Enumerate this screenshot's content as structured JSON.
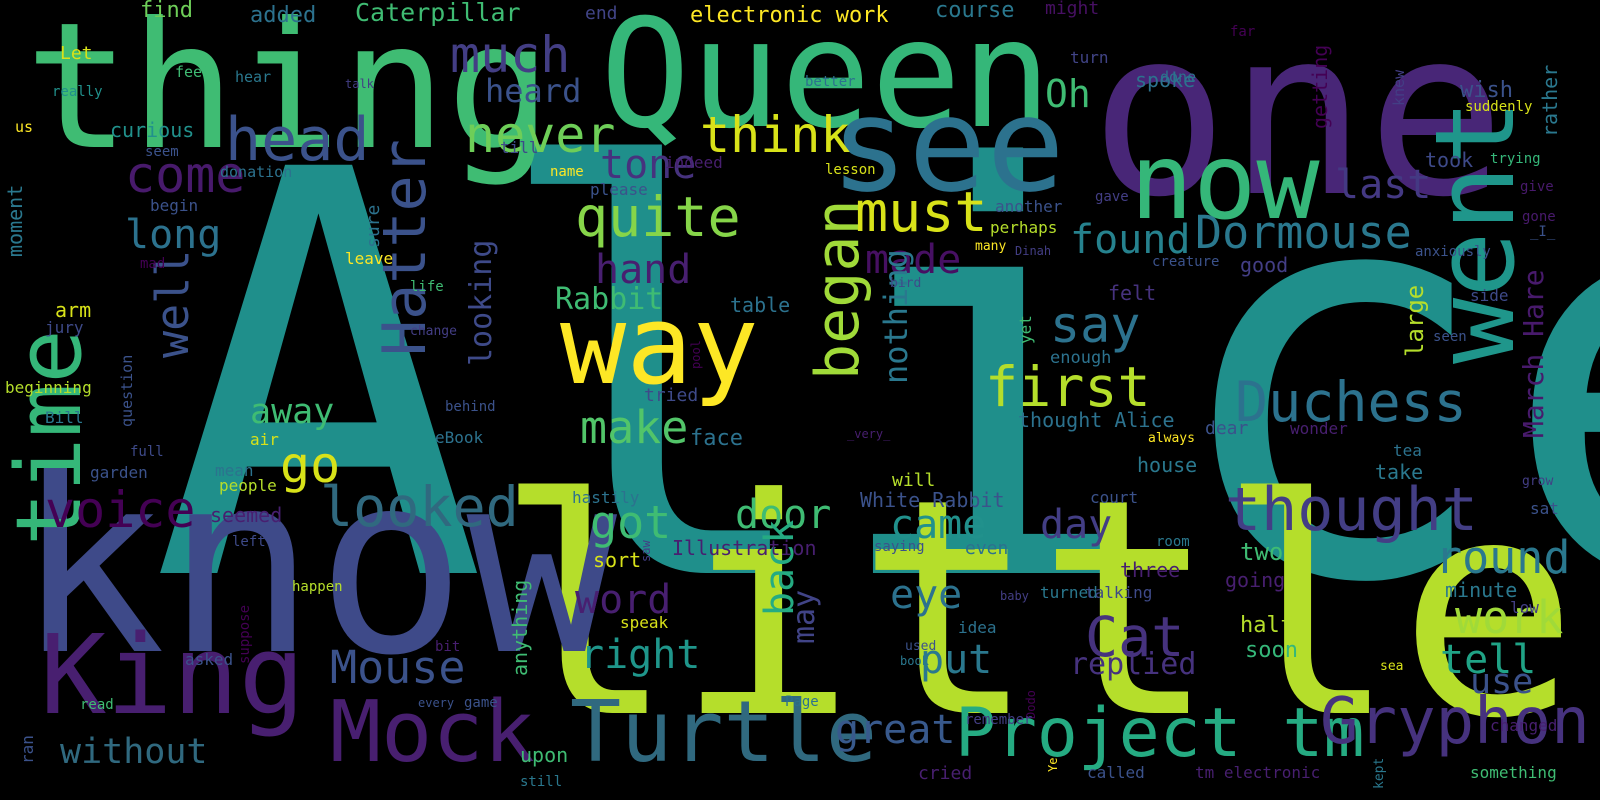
{
  "words": [
    {
      "text": "Alice",
      "color": "#1f8f8b"
    },
    {
      "text": "little",
      "color": "#b5de2b"
    },
    {
      "text": "one",
      "color": "#482677"
    },
    {
      "text": "know",
      "color": "#3e4a89"
    },
    {
      "text": "thing",
      "color": "#3fbc73"
    },
    {
      "text": "Queen",
      "color": "#35b779"
    },
    {
      "text": "time",
      "color": "#35b779"
    },
    {
      "text": "see",
      "color": "#2c728e"
    },
    {
      "text": "went",
      "color": "#1f968b"
    },
    {
      "text": "now",
      "color": "#35b779"
    },
    {
      "text": "way",
      "color": "#fde725"
    },
    {
      "text": "King",
      "color": "#481f70"
    },
    {
      "text": "Turtle",
      "color": "#30697f"
    },
    {
      "text": "Mock",
      "color": "#481f70"
    },
    {
      "text": "Project tm",
      "color": "#25ab82"
    },
    {
      "text": "Gryphon",
      "color": "#46327e"
    },
    {
      "text": "thought",
      "color": "#433e85"
    },
    {
      "text": "Hatter",
      "color": "#3b528b"
    },
    {
      "text": "began",
      "color": "#a0da39"
    },
    {
      "text": "head",
      "color": "#3b528b"
    },
    {
      "text": "quite",
      "color": "#86d549"
    },
    {
      "text": "must",
      "color": "#d8e219"
    },
    {
      "text": "first",
      "color": "#b5de2b"
    },
    {
      "text": "looked",
      "color": "#30697f"
    },
    {
      "text": "Duchess",
      "color": "#2c728e"
    },
    {
      "text": "Dormouse",
      "color": "#2a788e"
    },
    {
      "text": "think",
      "color": "#d8e219"
    },
    {
      "text": "much",
      "color": "#433e85"
    },
    {
      "text": "never",
      "color": "#6ece58"
    },
    {
      "text": "come",
      "color": "#481a6c"
    },
    {
      "text": "voice",
      "color": "#440154"
    },
    {
      "text": "say",
      "color": "#2c728e"
    },
    {
      "text": "go",
      "color": "#d8e219"
    },
    {
      "text": "got",
      "color": "#3fbc73"
    },
    {
      "text": "make",
      "color": "#52c569"
    },
    {
      "text": "round",
      "color": "#2a788e"
    },
    {
      "text": "work",
      "color": "#a0da39"
    },
    {
      "text": "Cat",
      "color": "#46327e"
    },
    {
      "text": "Mouse",
      "color": "#3b528b"
    },
    {
      "text": "well",
      "color": "#3b528b"
    },
    {
      "text": "long",
      "color": "#2c728e"
    },
    {
      "text": "tone",
      "color": "#46327e"
    },
    {
      "text": "found",
      "color": "#26828e"
    },
    {
      "text": "last",
      "color": "#443983"
    },
    {
      "text": "hand",
      "color": "#481f70"
    },
    {
      "text": "made",
      "color": "#471063"
    },
    {
      "text": "door",
      "color": "#3fbc73"
    },
    {
      "text": "came",
      "color": "#21918c"
    },
    {
      "text": "day",
      "color": "#433e85"
    },
    {
      "text": "back",
      "color": "#25ab82"
    },
    {
      "text": "eye",
      "color": "#2c728e"
    },
    {
      "text": "word",
      "color": "#481f70"
    },
    {
      "text": "right",
      "color": "#1f968b"
    },
    {
      "text": "great",
      "color": "#38598c"
    },
    {
      "text": "put",
      "color": "#2a788e"
    },
    {
      "text": "replied",
      "color": "#46327e"
    },
    {
      "text": "tell",
      "color": "#20a386"
    },
    {
      "text": "use",
      "color": "#3b528b"
    },
    {
      "text": "away",
      "color": "#3fbc73"
    },
    {
      "text": "without",
      "color": "#30697f"
    },
    {
      "text": "Oh",
      "color": "#3fbc73"
    },
    {
      "text": "heard",
      "color": "#3b528b"
    },
    {
      "text": "Rabbit",
      "color": "#3fbc73"
    },
    {
      "text": "March Hare",
      "color": "#481a6c"
    },
    {
      "text": "nothing",
      "color": "#2a788e"
    },
    {
      "text": "looking",
      "color": "#3e4a89"
    },
    {
      "text": "may",
      "color": "#414487"
    },
    {
      "text": "Caterpillar",
      "color": "#3fbc73"
    },
    {
      "text": "electronic work",
      "color": "#fde725"
    },
    {
      "text": "course",
      "color": "#2a788e"
    },
    {
      "text": "find",
      "color": "#6ece58"
    },
    {
      "text": "added",
      "color": "#2c728e"
    },
    {
      "text": "end",
      "color": "#414487"
    },
    {
      "text": "might",
      "color": "#471063"
    },
    {
      "text": "Let",
      "color": "#d8e219"
    },
    {
      "text": "feet",
      "color": "#3fbc73"
    },
    {
      "text": "hear",
      "color": "#2a788e"
    },
    {
      "text": "really",
      "color": "#21918c"
    },
    {
      "text": "us",
      "color": "#fde725"
    },
    {
      "text": "talk",
      "color": "#433e85"
    },
    {
      "text": "far",
      "color": "#440154"
    },
    {
      "text": "done",
      "color": "#2c728e"
    },
    {
      "text": "turn",
      "color": "#414487"
    },
    {
      "text": "getting",
      "color": "#440154"
    },
    {
      "text": "knew",
      "color": "#433e85"
    },
    {
      "text": "wish",
      "color": "#3b528b"
    },
    {
      "text": "suddenly",
      "color": "#d8e219"
    },
    {
      "text": "rather",
      "color": "#2a788e"
    },
    {
      "text": "spoke",
      "color": "#2c728e"
    },
    {
      "text": "better",
      "color": "#2c728e"
    },
    {
      "text": "curious",
      "color": "#21918c"
    },
    {
      "text": "seem",
      "color": "#3b528b"
    },
    {
      "text": "till",
      "color": "#3e4a89"
    },
    {
      "text": "name",
      "color": "#fde725"
    },
    {
      "text": "lesson",
      "color": "#d8e219"
    },
    {
      "text": "took",
      "color": "#3e4a89"
    },
    {
      "text": "trying",
      "color": "#35b779"
    },
    {
      "text": "give",
      "color": "#481a6c"
    },
    {
      "text": "gone",
      "color": "#481a6c"
    },
    {
      "text": "_I_",
      "color": "#3b528b"
    },
    {
      "text": "donation",
      "color": "#2c728e"
    },
    {
      "text": "please",
      "color": "#3b528b"
    },
    {
      "text": "indeed",
      "color": "#481f70"
    },
    {
      "text": "moment",
      "color": "#2a788e"
    },
    {
      "text": "begin",
      "color": "#3b528b"
    },
    {
      "text": "sure",
      "color": "#2c728e"
    },
    {
      "text": "another",
      "color": "#3b528b"
    },
    {
      "text": "gave",
      "color": "#433e85"
    },
    {
      "text": "anxiously",
      "color": "#3b528b"
    },
    {
      "text": "perhaps",
      "color": "#b5de2b"
    },
    {
      "text": "many",
      "color": "#fde725"
    },
    {
      "text": "Dinah",
      "color": "#433e85"
    },
    {
      "text": "creature",
      "color": "#3b528b"
    },
    {
      "text": "good",
      "color": "#433e85"
    },
    {
      "text": "mad",
      "color": "#440154"
    },
    {
      "text": "leave",
      "color": "#fde725"
    },
    {
      "text": "arm",
      "color": "#d8e219"
    },
    {
      "text": "life",
      "color": "#3fbc73"
    },
    {
      "text": "bird",
      "color": "#3e4a89"
    },
    {
      "text": "table",
      "color": "#2c728e"
    },
    {
      "text": "felt",
      "color": "#46327e"
    },
    {
      "text": "side",
      "color": "#3e4a89"
    },
    {
      "text": "large",
      "color": "#b5de2b"
    },
    {
      "text": "seen",
      "color": "#3b528b"
    },
    {
      "text": "jury",
      "color": "#3e4a89"
    },
    {
      "text": "change",
      "color": "#433e85"
    },
    {
      "text": "yet",
      "color": "#3fbc73"
    },
    {
      "text": "enough",
      "color": "#2c728e"
    },
    {
      "text": "pool",
      "color": "#440154"
    },
    {
      "text": "question",
      "color": "#3b528b"
    },
    {
      "text": "beginning",
      "color": "#b5de2b"
    },
    {
      "text": "Bill",
      "color": "#2a788e"
    },
    {
      "text": "tried",
      "color": "#3e4a89"
    },
    {
      "text": "behind",
      "color": "#3b528b"
    },
    {
      "text": "thought Alice",
      "color": "#2c728e"
    },
    {
      "text": "always",
      "color": "#fde725"
    },
    {
      "text": "dear",
      "color": "#3b528b"
    },
    {
      "text": "wonder",
      "color": "#481f70"
    },
    {
      "text": "tea",
      "color": "#2c728e"
    },
    {
      "text": "full",
      "color": "#3e4a89"
    },
    {
      "text": "air",
      "color": "#d8e219"
    },
    {
      "text": "eBook",
      "color": "#2c728e"
    },
    {
      "text": "face",
      "color": "#2c728e"
    },
    {
      "text": "_very_",
      "color": "#481f70"
    },
    {
      "text": "house",
      "color": "#2a788e"
    },
    {
      "text": "garden",
      "color": "#3b528b"
    },
    {
      "text": "mean",
      "color": "#2c728e"
    },
    {
      "text": "will",
      "color": "#b5de2b"
    },
    {
      "text": "grow",
      "color": "#433e85"
    },
    {
      "text": "people",
      "color": "#b5de2b"
    },
    {
      "text": "court",
      "color": "#3b528b"
    },
    {
      "text": "take",
      "color": "#2a788e"
    },
    {
      "text": "sat",
      "color": "#3b528b"
    },
    {
      "text": "hastily",
      "color": "#2c728e"
    },
    {
      "text": "seemed",
      "color": "#481f70"
    },
    {
      "text": "White Rabbit",
      "color": "#3b528b"
    },
    {
      "text": "left",
      "color": "#3e4a89"
    },
    {
      "text": "Illustration",
      "color": "#481f70"
    },
    {
      "text": "saying",
      "color": "#3b528b"
    },
    {
      "text": "even",
      "color": "#2c728e"
    },
    {
      "text": "room",
      "color": "#2a788e"
    },
    {
      "text": "two",
      "color": "#3fbc73"
    },
    {
      "text": "sort",
      "color": "#d8e219"
    },
    {
      "text": "saw",
      "color": "#433e85"
    },
    {
      "text": "three",
      "color": "#481f70"
    },
    {
      "text": "going",
      "color": "#481f70"
    },
    {
      "text": "minute",
      "color": "#2a788e"
    },
    {
      "text": "happen",
      "color": "#b5de2b"
    },
    {
      "text": "anything",
      "color": "#3fbc73"
    },
    {
      "text": "turned",
      "color": "#2a788e"
    },
    {
      "text": "talking",
      "color": "#3e4a89"
    },
    {
      "text": "baby",
      "color": "#433e85"
    },
    {
      "text": "suppose",
      "color": "#440154"
    },
    {
      "text": "low",
      "color": "#433e85"
    },
    {
      "text": "speak",
      "color": "#d8e219"
    },
    {
      "text": "idea",
      "color": "#2c728e"
    },
    {
      "text": "half",
      "color": "#b5de2b"
    },
    {
      "text": "soon",
      "color": "#35b779"
    },
    {
      "text": "asked",
      "color": "#3b528b"
    },
    {
      "text": "bit",
      "color": "#481f70"
    },
    {
      "text": "used",
      "color": "#3b528b"
    },
    {
      "text": "book",
      "color": "#2a788e"
    },
    {
      "text": "sea",
      "color": "#d8e219"
    },
    {
      "text": "read",
      "color": "#3fbc73"
    },
    {
      "text": "every",
      "color": "#3b528b"
    },
    {
      "text": "Dodo",
      "color": "#440154"
    },
    {
      "text": "game",
      "color": "#3b528b"
    },
    {
      "text": "Page",
      "color": "#2c728e"
    },
    {
      "text": "upon",
      "color": "#3fbc73"
    },
    {
      "text": "remember",
      "color": "#433e85"
    },
    {
      "text": "changed",
      "color": "#481f70"
    },
    {
      "text": "ran",
      "color": "#3b528b"
    },
    {
      "text": "still",
      "color": "#2a788e"
    },
    {
      "text": "cried",
      "color": "#481f70"
    },
    {
      "text": "Ye",
      "color": "#fde725"
    },
    {
      "text": "called",
      "color": "#3b528b"
    },
    {
      "text": "tm electronic",
      "color": "#481f70"
    },
    {
      "text": "kept",
      "color": "#2a788e"
    },
    {
      "text": "something",
      "color": "#3fbc73"
    }
  ]
}
